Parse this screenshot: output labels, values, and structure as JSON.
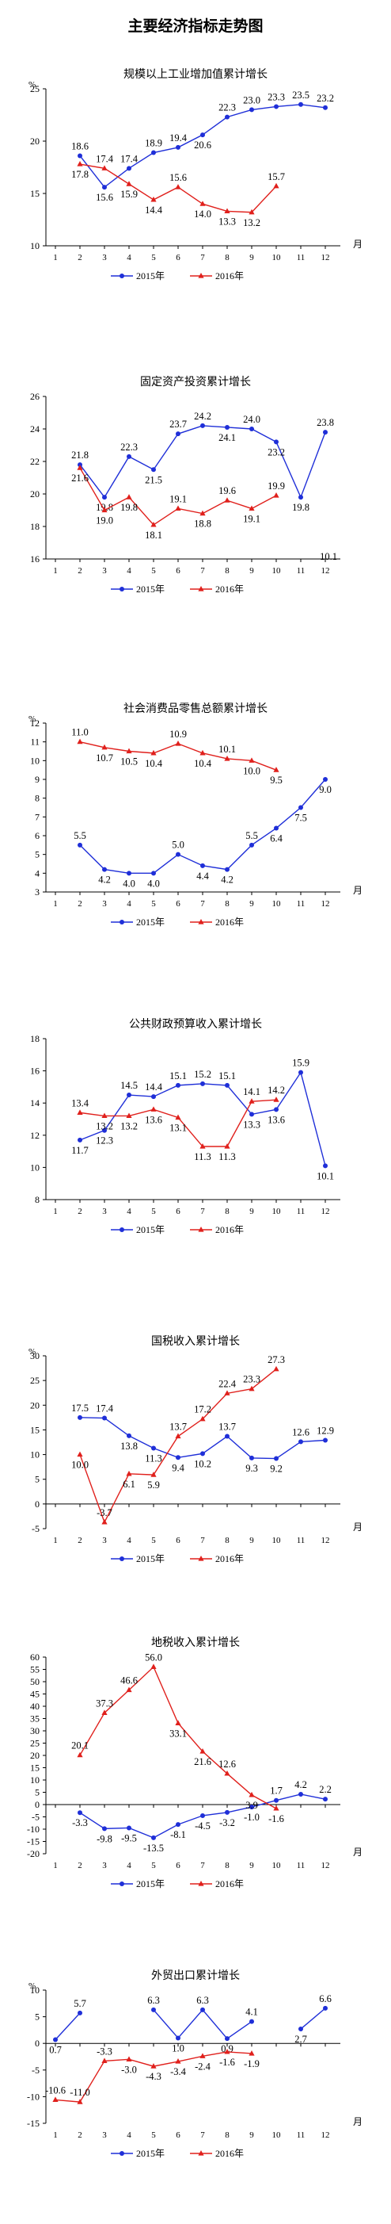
{
  "page": {
    "title": "主要经济指标走势图"
  },
  "legend": {
    "series_a": "2015年",
    "series_b": "2016年"
  },
  "colors": {
    "series_a": "#1f2fd8",
    "series_b": "#e0201c",
    "axis": "#000000"
  },
  "x_axis_unit": "月",
  "chart_data": [
    {
      "type": "line",
      "title": "规模以上工业增加值累计增长",
      "ylabel": "%",
      "ylim": [
        10,
        25
      ],
      "yticks": [
        10,
        15,
        20,
        25
      ],
      "x": [
        1,
        2,
        3,
        4,
        5,
        6,
        7,
        8,
        9,
        10,
        11,
        12
      ],
      "xlabel": "月",
      "series": [
        {
          "name": "2015年",
          "values": [
            null,
            18.6,
            15.6,
            17.4,
            18.9,
            19.4,
            20.6,
            22.3,
            23.0,
            23.3,
            23.5,
            23.2
          ]
        },
        {
          "name": "2016年",
          "values": [
            null,
            17.8,
            17.4,
            15.9,
            14.4,
            15.6,
            14.0,
            13.3,
            13.2,
            15.7,
            null,
            null
          ]
        }
      ]
    },
    {
      "type": "line",
      "title": "固定资产投资累计增长",
      "ylabel": "",
      "ylim": [
        16,
        26
      ],
      "yticks": [
        16,
        18,
        20,
        22,
        24,
        26
      ],
      "x": [
        1,
        2,
        3,
        4,
        5,
        6,
        7,
        8,
        9,
        10,
        11,
        12
      ],
      "xlabel": "",
      "series": [
        {
          "name": "2015年",
          "values": [
            null,
            21.8,
            19.8,
            22.3,
            21.5,
            23.7,
            24.2,
            24.1,
            24.0,
            23.2,
            19.8,
            23.8
          ]
        },
        {
          "name": "2016年",
          "values": [
            null,
            21.6,
            19.0,
            19.8,
            18.1,
            19.1,
            18.8,
            19.6,
            19.1,
            19.9,
            null,
            null
          ]
        }
      ],
      "extra_labels": [
        "10.1"
      ]
    },
    {
      "type": "line",
      "title": "社会消费品零售总额累计增长",
      "ylabel": "%",
      "ylim": [
        3,
        12
      ],
      "yticks": [
        3,
        4,
        5,
        6,
        7,
        8,
        9,
        10,
        11,
        12
      ],
      "x": [
        1,
        2,
        3,
        4,
        5,
        6,
        7,
        8,
        9,
        10,
        11,
        12
      ],
      "xlabel": "月",
      "series": [
        {
          "name": "2015年",
          "values": [
            null,
            5.5,
            4.2,
            4.0,
            4.0,
            5.0,
            4.4,
            4.2,
            5.5,
            6.4,
            7.5,
            9.0
          ]
        },
        {
          "name": "2016年",
          "values": [
            null,
            11.0,
            10.7,
            10.5,
            10.4,
            10.9,
            10.4,
            10.1,
            10.0,
            9.5,
            null,
            null
          ]
        }
      ]
    },
    {
      "type": "line",
      "title": "公共财政预算收入累计增长",
      "ylabel": "",
      "ylim": [
        8,
        18
      ],
      "yticks": [
        8,
        10,
        12,
        14,
        16,
        18
      ],
      "x": [
        1,
        2,
        3,
        4,
        5,
        6,
        7,
        8,
        9,
        10,
        11,
        12
      ],
      "xlabel": "",
      "series": [
        {
          "name": "2015年",
          "values": [
            null,
            11.7,
            12.3,
            14.5,
            14.4,
            15.1,
            15.2,
            15.1,
            13.3,
            13.6,
            15.9,
            10.1
          ]
        },
        {
          "name": "2016年",
          "values": [
            null,
            13.4,
            13.2,
            13.2,
            13.6,
            13.1,
            11.3,
            11.3,
            14.1,
            14.2,
            null,
            null
          ]
        }
      ]
    },
    {
      "type": "line",
      "title": "国税收入累计增长",
      "ylabel": "%",
      "ylim": [
        -5,
        30
      ],
      "yticks": [
        -5,
        0,
        5,
        10,
        15,
        20,
        25,
        30
      ],
      "x": [
        1,
        2,
        3,
        4,
        5,
        6,
        7,
        8,
        9,
        10,
        11,
        12
      ],
      "xlabel": "月",
      "series": [
        {
          "name": "2015年",
          "values": [
            null,
            17.5,
            17.4,
            13.8,
            11.3,
            9.4,
            10.2,
            13.7,
            9.3,
            9.2,
            12.6,
            12.9
          ]
        },
        {
          "name": "2016年",
          "values": [
            null,
            10.0,
            -3.7,
            6.1,
            5.9,
            13.7,
            17.2,
            22.4,
            23.3,
            27.3,
            null,
            null
          ]
        }
      ]
    },
    {
      "type": "line",
      "title": "地税收入累计增长",
      "ylabel": "",
      "ylim": [
        -20,
        60
      ],
      "yticks": [
        -20,
        -15,
        -10,
        -5,
        0,
        5,
        10,
        15,
        20,
        25,
        30,
        35,
        40,
        45,
        50,
        55,
        60
      ],
      "x": [
        1,
        2,
        3,
        4,
        5,
        6,
        7,
        8,
        9,
        10,
        11,
        12
      ],
      "xlabel": "月",
      "series": [
        {
          "name": "2015年",
          "values": [
            null,
            -3.3,
            -9.8,
            -9.5,
            -13.5,
            -8.1,
            -4.5,
            -3.2,
            -1.0,
            1.7,
            4.2,
            2.2
          ]
        },
        {
          "name": "2016年",
          "values": [
            null,
            20.1,
            37.3,
            46.6,
            56.0,
            33.1,
            21.6,
            12.6,
            3.9,
            -1.6,
            null,
            null
          ]
        }
      ]
    },
    {
      "type": "line",
      "title": "外贸出口累计增长",
      "ylabel": "%",
      "ylim": [
        -15,
        10
      ],
      "yticks": [
        -15,
        -10,
        -5,
        0,
        5,
        10
      ],
      "x": [
        1,
        2,
        3,
        4,
        5,
        6,
        7,
        8,
        9,
        10,
        11,
        12
      ],
      "xlabel": "月",
      "series": [
        {
          "name": "2015年",
          "values": [
            0.7,
            5.7,
            null,
            null,
            6.3,
            1.0,
            6.3,
            0.9,
            4.1,
            null,
            2.7,
            6.6
          ]
        },
        {
          "name": "2016年",
          "values": [
            -10.6,
            -11.0,
            -3.3,
            -3.0,
            -4.3,
            -3.4,
            -2.4,
            -1.6,
            -1.9,
            null,
            null,
            null
          ]
        }
      ]
    }
  ]
}
